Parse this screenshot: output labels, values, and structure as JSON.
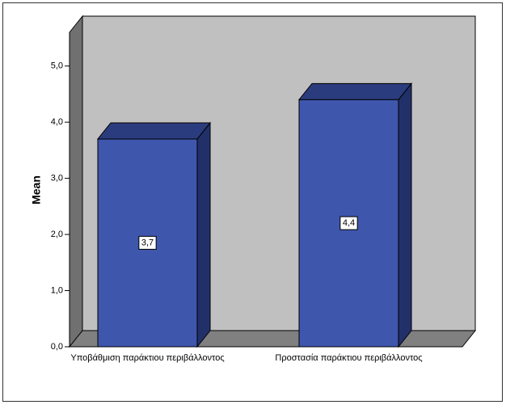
{
  "chart_data": {
    "type": "bar3d",
    "y_label": "Mean",
    "categories": [
      "Υποβάθμιση παράκτιου περιβάλλοντος",
      "Προστασία παράκτιου περιβάλλοντος"
    ],
    "values": [
      3.7,
      4.4
    ],
    "value_labels": [
      "3,7",
      "4,4"
    ],
    "color": "#3e56ab",
    "ylim": [
      0,
      5.6
    ],
    "yticks": [
      {
        "value": 0,
        "label": "0,0"
      },
      {
        "value": 1,
        "label": "1,0"
      },
      {
        "value": 2,
        "label": "2,0"
      },
      {
        "value": 3,
        "label": "3,0"
      },
      {
        "value": 4,
        "label": "4,0"
      },
      {
        "value": 5,
        "label": "5,0"
      }
    ],
    "grid": false
  }
}
